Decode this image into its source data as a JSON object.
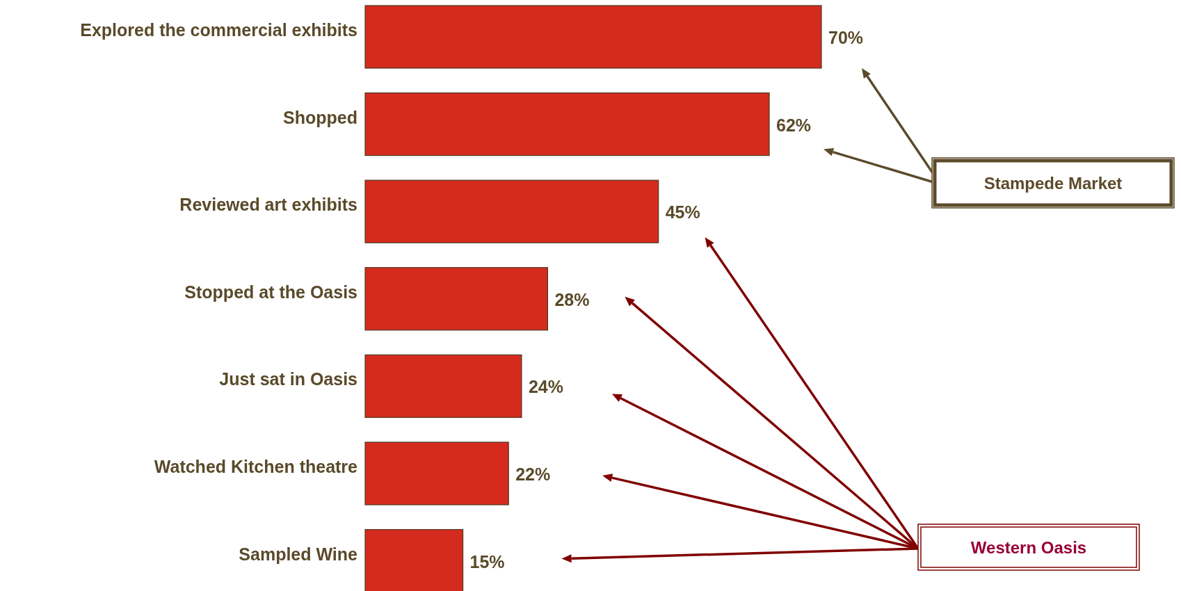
{
  "chart_data": {
    "type": "bar",
    "orientation": "horizontal",
    "categories": [
      "Explored the commercial exhibits",
      "Shopped",
      "Reviewed art exhibits",
      "Stopped at the Oasis",
      "Just sat in Oasis",
      "Watched Kitchen theatre",
      "Sampled Wine"
    ],
    "values": [
      70,
      62,
      45,
      28,
      24,
      22,
      15
    ],
    "color": "#d52b1e",
    "value_labels": [
      "70%",
      "62%",
      "45%",
      "28%",
      "24%",
      "22%",
      "15%"
    ],
    "annotations": [
      "Stampede Market",
      "Western Oasis"
    ]
  }
}
